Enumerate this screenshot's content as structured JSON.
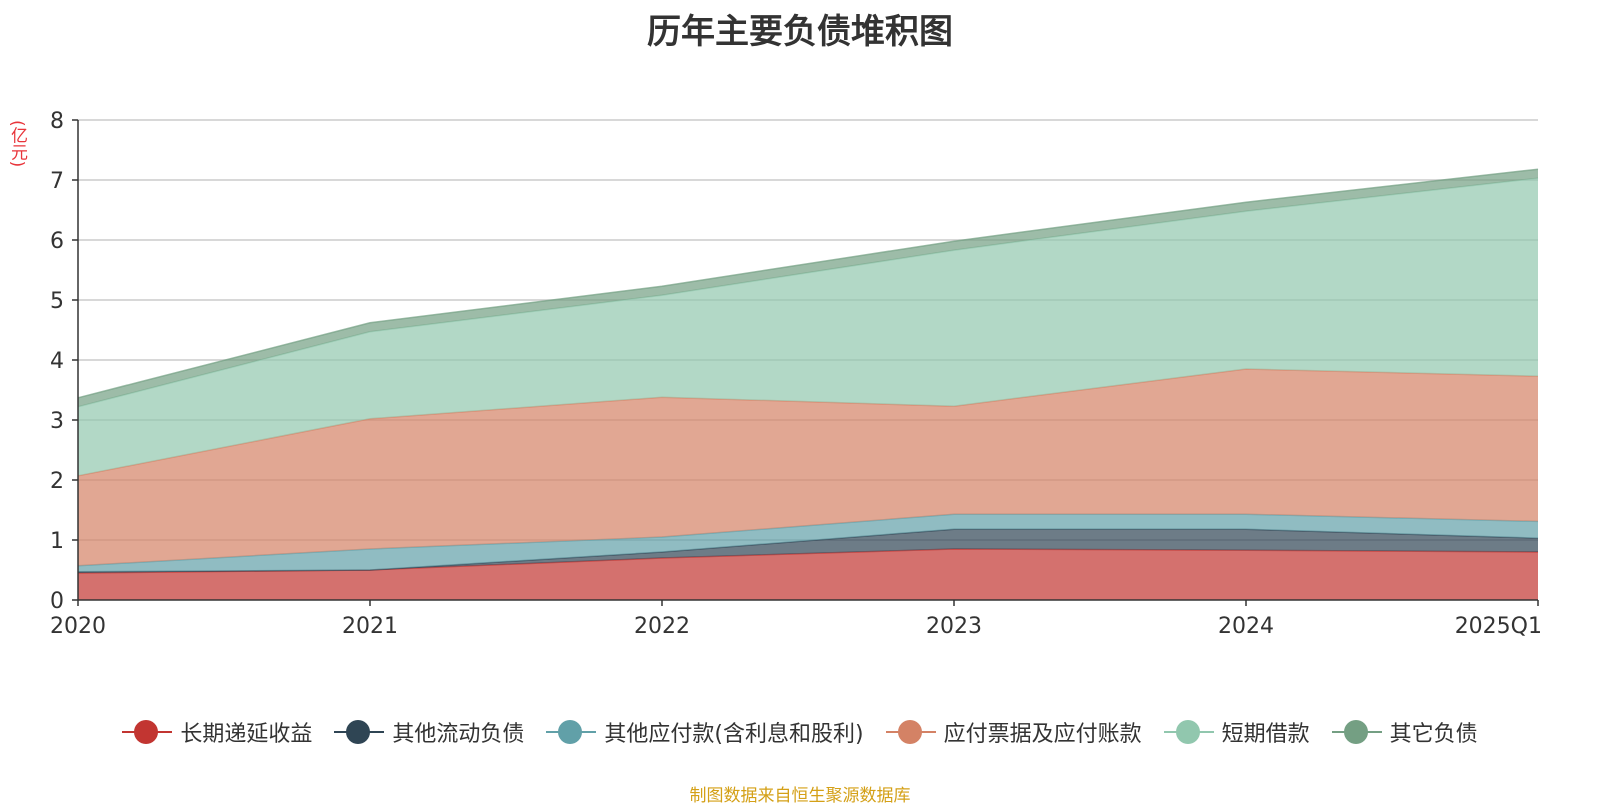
{
  "chart_data": {
    "type": "area",
    "stacked": true,
    "title": "历年主要负债堆积图",
    "unit_label": "(亿元)",
    "categories": [
      "2020",
      "2021",
      "2022",
      "2023",
      "2024",
      "2025Q1"
    ],
    "ylim": [
      0,
      8
    ],
    "yticks": [
      "0",
      "1",
      "2",
      "3",
      "4",
      "5",
      "6",
      "7",
      "8"
    ],
    "grid": true,
    "legend_position": "bottom",
    "series": [
      {
        "name": "长期递延收益",
        "color": "#c23531",
        "values": [
          0.45,
          0.5,
          0.7,
          0.85,
          0.83,
          0.8
        ]
      },
      {
        "name": "其他流动负债",
        "color": "#2f4554",
        "values": [
          0.02,
          0.0,
          0.1,
          0.33,
          0.35,
          0.23
        ]
      },
      {
        "name": "其他应付款(含利息和股利)",
        "color": "#61a0a8",
        "values": [
          0.1,
          0.35,
          0.25,
          0.25,
          0.25,
          0.28
        ]
      },
      {
        "name": "应付票据及应付账款",
        "color": "#d48265",
        "values": [
          1.5,
          2.17,
          2.33,
          1.8,
          2.42,
          2.42
        ]
      },
      {
        "name": "短期借款",
        "color": "#91c7ae",
        "values": [
          1.15,
          1.45,
          1.7,
          2.6,
          2.63,
          3.3
        ]
      },
      {
        "name": "其它负债",
        "color": "#749f83",
        "values": [
          0.15,
          0.15,
          0.15,
          0.15,
          0.15,
          0.15
        ]
      }
    ]
  },
  "source_note": "制图数据来自恒生聚源数据库"
}
